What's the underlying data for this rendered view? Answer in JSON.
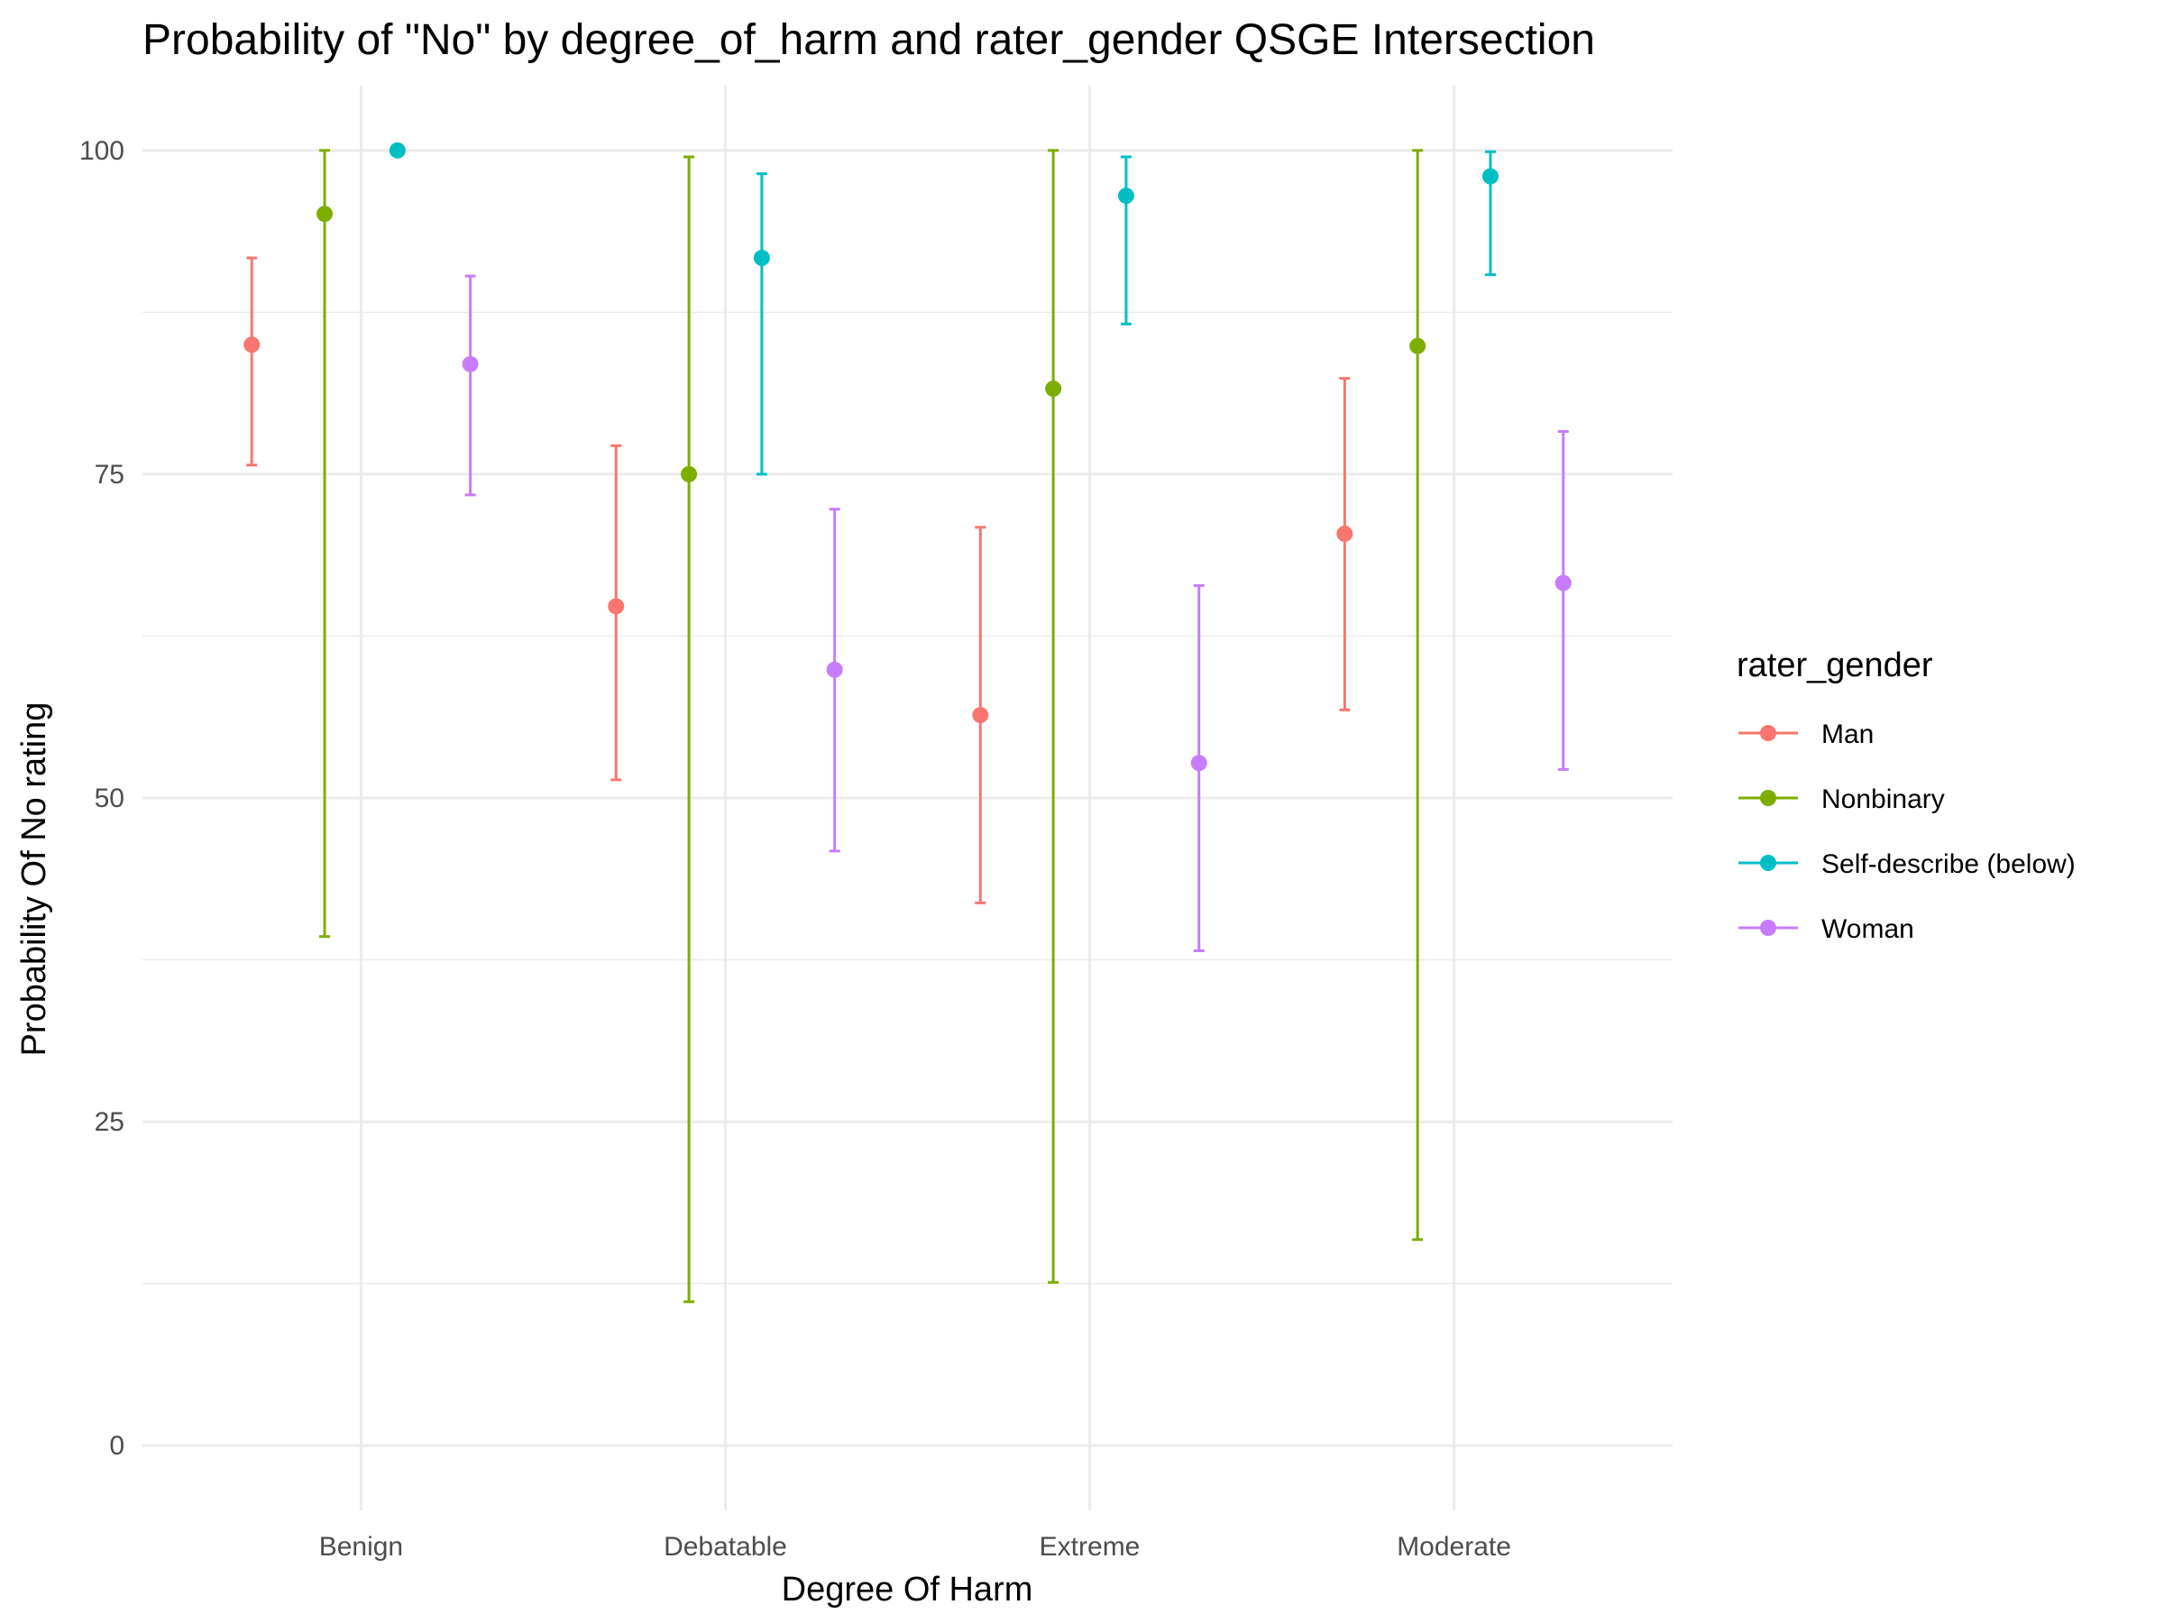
{
  "chart_data": {
    "type": "scatter",
    "title": "Probability of \"No\" by degree_of_harm and  rater_gender  QSGE Intersection",
    "xlabel": "Degree Of Harm",
    "ylabel": "Probability Of No rating",
    "categories": [
      "Benign",
      "Debatable",
      "Extreme",
      "Moderate"
    ],
    "ylim": [
      -5,
      105
    ],
    "y_ticks": [
      "0",
      "25",
      "50",
      "75",
      "100"
    ],
    "grid": true,
    "legend": {
      "title": "rater_gender",
      "placement": "right"
    },
    "series": [
      {
        "name": "Man",
        "color": "#F8766D",
        "values": [
          85.0,
          64.8,
          56.4,
          70.4
        ],
        "lower": [
          75.7,
          51.4,
          41.9,
          56.8
        ],
        "upper": [
          91.7,
          77.2,
          70.9,
          82.4
        ]
      },
      {
        "name": "Nonbinary",
        "color": "#7CAE00",
        "values": [
          95.1,
          75.0,
          81.6,
          84.9
        ],
        "lower": [
          39.3,
          11.1,
          12.6,
          15.9
        ],
        "upper": [
          100.0,
          99.5,
          100.0,
          100.0
        ]
      },
      {
        "name": "Self-describe (below)",
        "color": "#00BFC4",
        "values": [
          100.0,
          91.7,
          96.5,
          98.0
        ],
        "lower": [
          null,
          75.0,
          86.6,
          90.4
        ],
        "upper": [
          null,
          98.2,
          99.5,
          99.9
        ]
      },
      {
        "name": "Woman",
        "color": "#C77CFF",
        "values": [
          83.5,
          59.9,
          52.7,
          66.6
        ],
        "lower": [
          73.4,
          45.9,
          38.2,
          52.2
        ],
        "upper": [
          90.3,
          72.3,
          66.4,
          78.3
        ]
      }
    ]
  }
}
